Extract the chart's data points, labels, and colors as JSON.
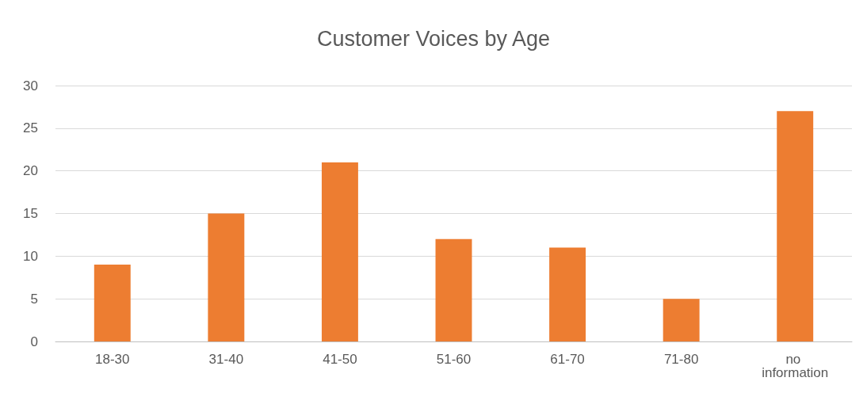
{
  "chart_data": {
    "type": "bar",
    "title": "Customer Voices by Age",
    "categories": [
      "18-30",
      "31-40",
      "41-50",
      "51-60",
      "61-70",
      "71-80",
      "no information"
    ],
    "values": [
      9,
      15,
      21,
      12,
      11,
      5,
      27
    ],
    "color": "#ed7d31",
    "ylim": [
      0,
      30
    ],
    "yticks": [
      0,
      5,
      10,
      15,
      20,
      25,
      30
    ],
    "grid": "y"
  }
}
